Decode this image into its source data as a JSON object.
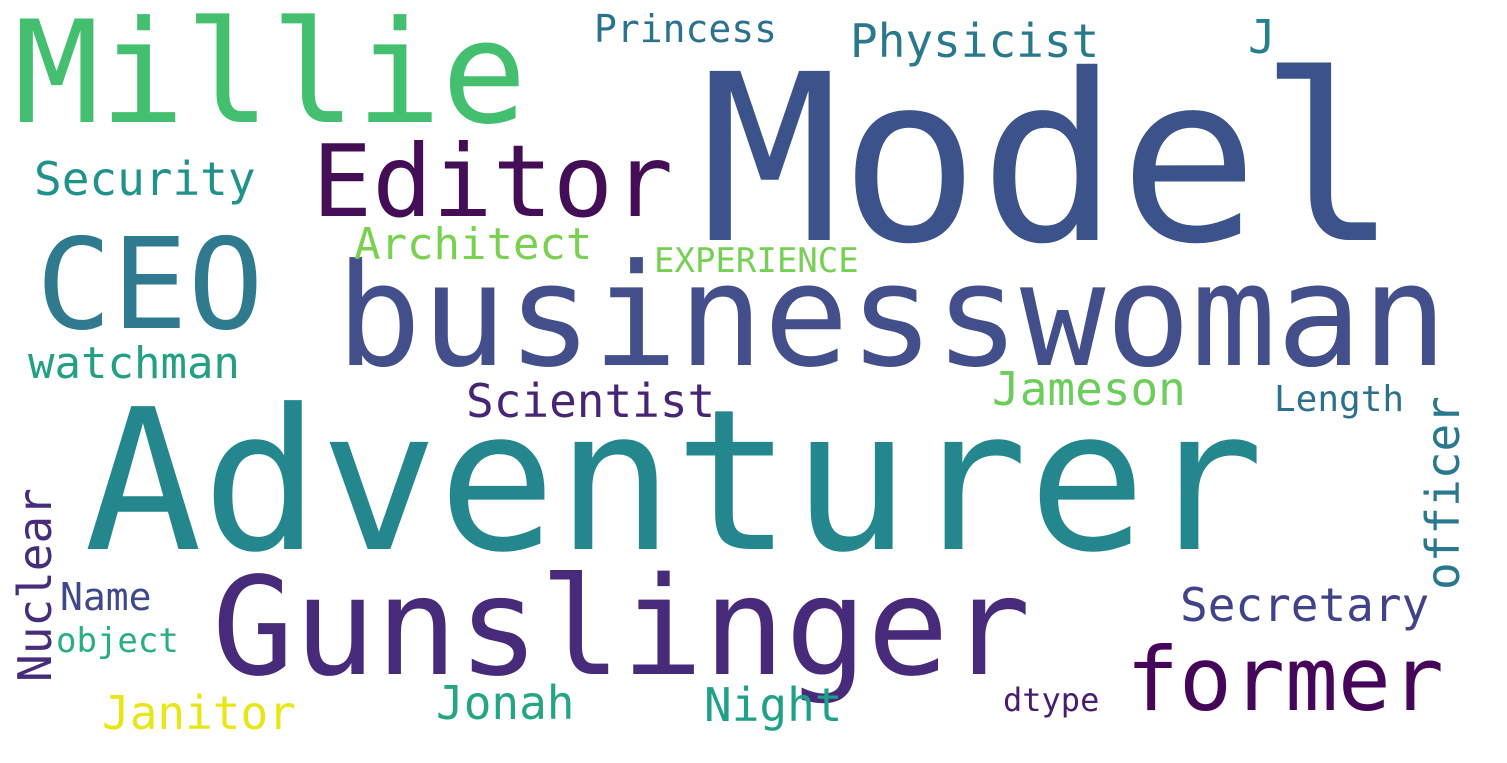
{
  "words": [
    {
      "key": "model",
      "text": "Model",
      "color": "#3b528b"
    },
    {
      "key": "adventurer",
      "text": "Adventurer",
      "color": "#24878e"
    },
    {
      "key": "businesswoman",
      "text": "businesswoman",
      "color": "#424f8b"
    },
    {
      "key": "gunslinger",
      "text": "Gunslinger",
      "color": "#472a7a"
    },
    {
      "key": "millie",
      "text": "Millie",
      "color": "#44bf70"
    },
    {
      "key": "ceo",
      "text": "CEO",
      "color": "#2f7a8e"
    },
    {
      "key": "editor",
      "text": "Editor",
      "color": "#440e57"
    },
    {
      "key": "former",
      "text": "former",
      "color": "#45065a"
    },
    {
      "key": "secretary",
      "text": "Secretary",
      "color": "#404387"
    },
    {
      "key": "officer",
      "text": "officer",
      "color": "#2a788e"
    },
    {
      "key": "jameson",
      "text": "Jameson",
      "color": "#6ccd5a"
    },
    {
      "key": "scientist",
      "text": "Scientist",
      "color": "#482475"
    },
    {
      "key": "jonah",
      "text": "Jonah",
      "color": "#25a584"
    },
    {
      "key": "night",
      "text": "Night",
      "color": "#1fa088"
    },
    {
      "key": "janitor",
      "text": "Janitor",
      "color": "#e8e619"
    },
    {
      "key": "physicist",
      "text": "Physicist",
      "color": "#2a788e"
    },
    {
      "key": "j",
      "text": "J",
      "color": "#277f8e"
    },
    {
      "key": "security",
      "text": "Security",
      "color": "#21918c"
    },
    {
      "key": "architect",
      "text": "Architect",
      "color": "#7ad151"
    },
    {
      "key": "watchman",
      "text": "watchman",
      "color": "#23a083"
    },
    {
      "key": "nuclear",
      "text": "Nuclear",
      "color": "#472c7a"
    },
    {
      "key": "princess",
      "text": "Princess",
      "color": "#2c718e"
    },
    {
      "key": "experience",
      "text": "EXPERIENCE",
      "color": "#75d054"
    },
    {
      "key": "length",
      "text": "Length",
      "color": "#2d708e"
    },
    {
      "key": "name",
      "text": "Name",
      "color": "#3e4989"
    },
    {
      "key": "object",
      "text": "object",
      "color": "#28ae80"
    },
    {
      "key": "dtype",
      "text": "dtype",
      "color": "#481d6f"
    }
  ]
}
